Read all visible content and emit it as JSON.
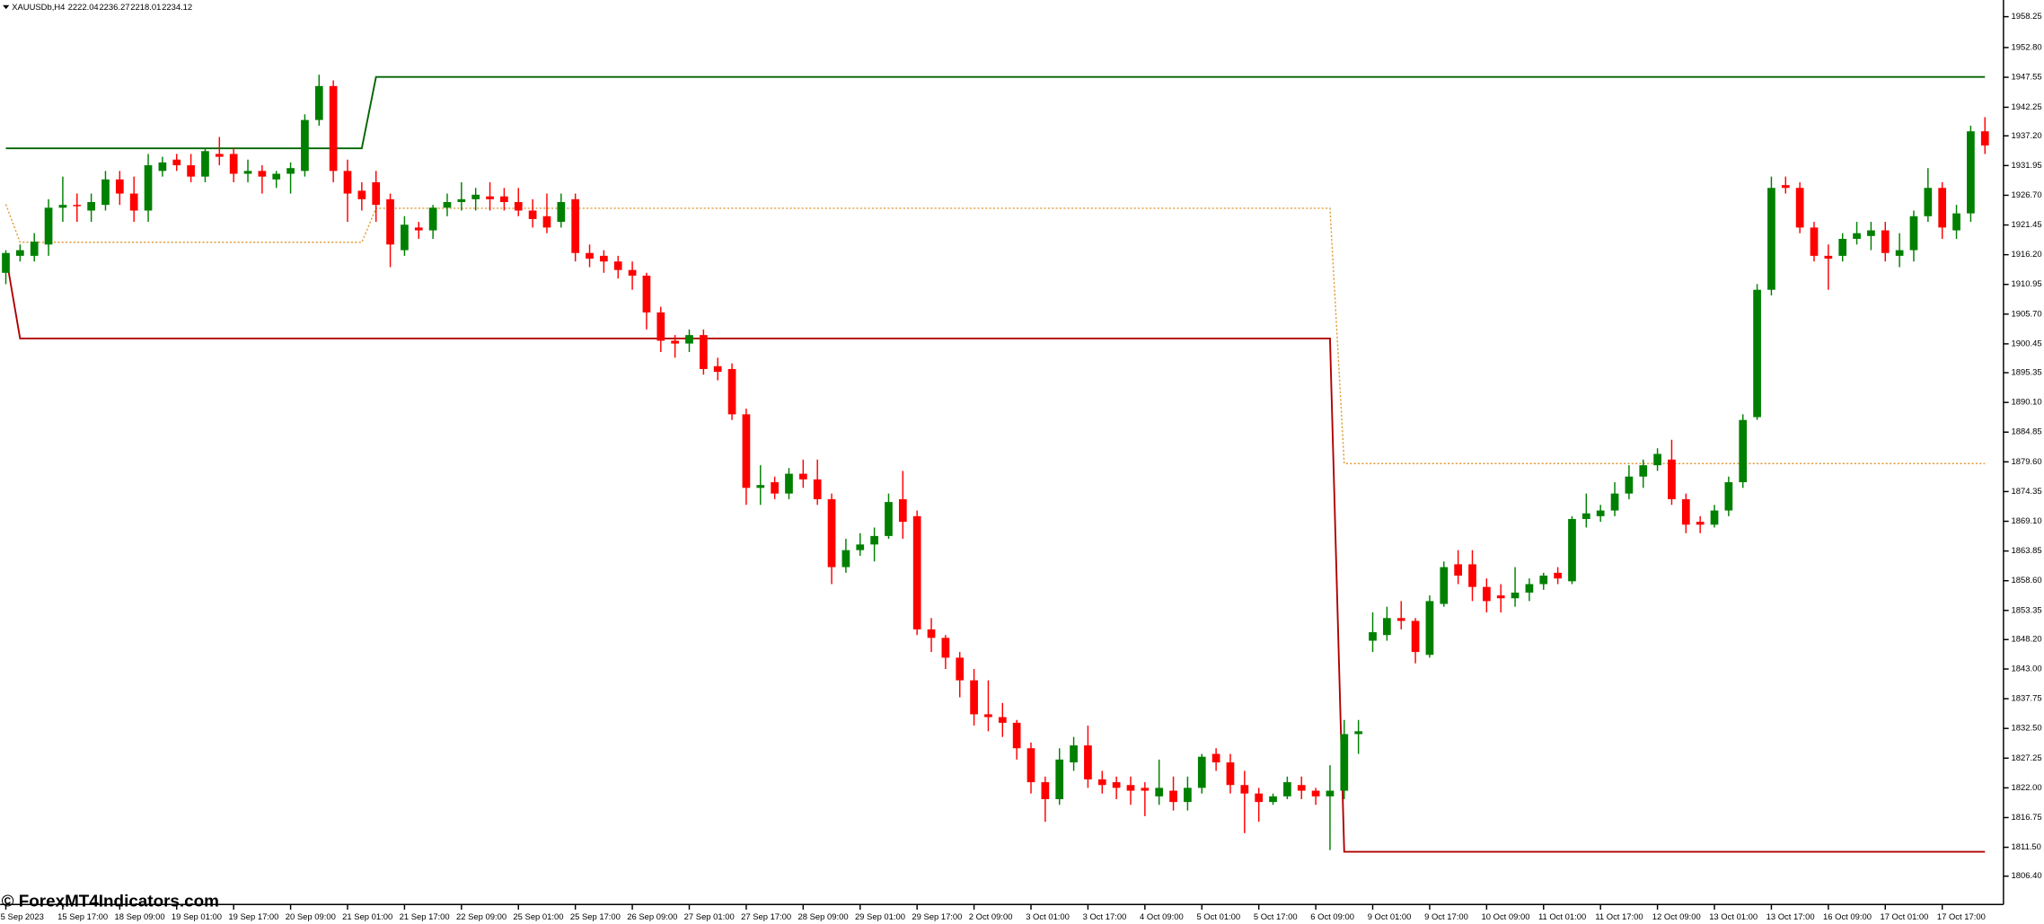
{
  "chart_data": {
    "type": "candlestick",
    "title": "XAUUSDb,H4",
    "header_values": [
      2222.04,
      2236.27,
      2218.01,
      2234.12
    ],
    "watermark": "© ForexMT4Indicators.com",
    "up_color": "#008000",
    "down_color": "#ff0000",
    "open": [
      1913,
      1916,
      1916,
      1918,
      1924.5,
      1925,
      1924,
      1925,
      1929.5,
      1927,
      1924,
      1931,
      1933,
      1932,
      1930,
      1934,
      1934,
      1930.5,
      1931,
      1929.5,
      1930.5,
      1931,
      1940,
      1946,
      1931,
      1927.5,
      1929,
      1926,
      1917,
      1921,
      1920.5,
      1924.5,
      1925.5,
      1926,
      1926.5,
      1926.5,
      1925.5,
      1924,
      1923,
      1922,
      1926,
      1916.5,
      1916,
      1915,
      1913.5,
      1912.5,
      1906,
      1901,
      1900.5,
      1902,
      1896.5,
      1896,
      1888,
      1875,
      1876,
      1874,
      1877.5,
      1876.5,
      1873,
      1861,
      1864,
      1865,
      1866.5,
      1873,
      1870,
      1850,
      1848.5,
      1845,
      1841,
      1835,
      1834.5,
      1833.5,
      1829,
      1823,
      1820,
      1826.5,
      1829.5,
      1823.5,
      1823,
      1822.5,
      1822,
      1820.5,
      1821.5,
      1819.5,
      1822,
      1828,
      1826.5,
      1822.5,
      1821,
      1819.5,
      1820.5,
      1822.5,
      1821.5,
      1820.5,
      1821.5,
      1831.5,
      1848,
      1849,
      1852,
      1851.5,
      1845.5,
      1854.5,
      1861.5,
      1861.5,
      1857.5,
      1856,
      1855.5,
      1856.5,
      1858,
      1860,
      1858.5,
      1869.5,
      1870,
      1871,
      1874,
      1877,
      1879,
      1880,
      1873,
      1869,
      1868.5,
      1871,
      1876,
      1887.5,
      1910,
      1928.5,
      1928,
      1921,
      1916,
      1916,
      1919,
      1919.5,
      1920.5,
      1916,
      1917,
      1923,
      1928,
      1920.5,
      1923.5,
      1938
    ],
    "high": [
      1917,
      1918,
      1920,
      1926,
      1930,
      1927,
      1927,
      1931,
      1931,
      1930,
      1934,
      1933.5,
      1934,
      1934,
      1935,
      1937,
      1935,
      1933,
      1932,
      1931,
      1932.5,
      1941,
      1948,
      1947,
      1933,
      1929,
      1931,
      1927,
      1923,
      1922,
      1925,
      1927,
      1929,
      1928,
      1929,
      1928,
      1928,
      1926,
      1927,
      1927,
      1927,
      1918,
      1917,
      1916,
      1915,
      1913,
      1907,
      1902,
      1903,
      1903,
      1898,
      1897,
      1889,
      1879,
      1877,
      1878.5,
      1880,
      1880,
      1874,
      1866,
      1867,
      1868,
      1874,
      1878,
      1871,
      1852,
      1849,
      1846,
      1843,
      1841,
      1837,
      1834,
      1830,
      1824,
      1829,
      1831,
      1833,
      1825,
      1824,
      1824,
      1823,
      1827,
      1824,
      1824,
      1828,
      1829,
      1828,
      1825,
      1822,
      1821,
      1824,
      1824,
      1822,
      1826,
      1834,
      1834,
      1853,
      1854,
      1855,
      1852,
      1856,
      1862,
      1864,
      1864,
      1859,
      1858,
      1861,
      1859,
      1860,
      1861,
      1870,
      1874,
      1872,
      1876,
      1879,
      1880,
      1882,
      1883.5,
      1874,
      1870,
      1872,
      1877,
      1888,
      1911,
      1930,
      1930,
      1929,
      1922,
      1918,
      1920,
      1922,
      1922,
      1922,
      1920,
      1924,
      1931.5,
      1929,
      1925,
      1939,
      1940.5
    ],
    "low": [
      1911,
      1915,
      1915,
      1916,
      1922,
      1922,
      1922,
      1924,
      1925,
      1922,
      1922,
      1930,
      1931,
      1929,
      1929,
      1932,
      1929,
      1929,
      1927,
      1928,
      1927,
      1930,
      1939,
      1929,
      1922,
      1924,
      1922,
      1914,
      1916,
      1919,
      1919,
      1923,
      1924,
      1924,
      1924,
      1924,
      1923,
      1921,
      1920,
      1921,
      1915,
      1914,
      1913,
      1912,
      1910,
      1903,
      1899,
      1898,
      1899,
      1895,
      1894,
      1887,
      1872,
      1872,
      1873,
      1873,
      1875,
      1872,
      1858,
      1860,
      1863,
      1862,
      1866,
      1866,
      1849,
      1846,
      1843,
      1838,
      1833,
      1832,
      1831,
      1827,
      1821,
      1816,
      1819,
      1825,
      1822,
      1821,
      1820,
      1819,
      1817,
      1819,
      1818,
      1818,
      1821,
      1825,
      1821,
      1814,
      1816,
      1819,
      1820,
      1820,
      1819,
      1811,
      1820,
      1828,
      1846,
      1848,
      1850,
      1844,
      1845,
      1854,
      1858,
      1855,
      1853,
      1853,
      1854,
      1855,
      1857,
      1858,
      1858,
      1868,
      1869,
      1870,
      1873,
      1875,
      1878,
      1872,
      1867,
      1867,
      1868,
      1870,
      1875,
      1887,
      1909,
      1927,
      1920,
      1915,
      1910,
      1915,
      1918,
      1917,
      1915,
      1914,
      1915,
      1922,
      1919,
      1919,
      1922,
      1934
    ],
    "close": [
      1916.5,
      1917,
      1918.5,
      1924.5,
      1925,
      1924.8,
      1925.5,
      1929.5,
      1927,
      1924,
      1932,
      1932.5,
      1932,
      1930,
      1934.5,
      1933.5,
      1930.5,
      1931,
      1930,
      1930.5,
      1931.5,
      1940,
      1946,
      1931,
      1927,
      1926,
      1925,
      1918,
      1921.5,
      1920.5,
      1924.5,
      1925.5,
      1926,
      1926.8,
      1926,
      1925.5,
      1924,
      1922.5,
      1921,
      1925.5,
      1916.5,
      1915.5,
      1915,
      1913.5,
      1912.5,
      1906,
      1901,
      1900.5,
      1902,
      1896,
      1895.5,
      1888,
      1875,
      1875.5,
      1874,
      1877.5,
      1876.5,
      1873,
      1861,
      1864,
      1865,
      1866.5,
      1872.5,
      1869,
      1850,
      1848.5,
      1845,
      1841,
      1835,
      1834.5,
      1833.5,
      1829,
      1823,
      1820,
      1827,
      1829.5,
      1823.5,
      1822.5,
      1822,
      1821.5,
      1821.5,
      1822,
      1819.5,
      1822,
      1827.5,
      1826.5,
      1822.5,
      1821,
      1819.5,
      1820.5,
      1823,
      1821.5,
      1820.5,
      1821.5,
      1831.5,
      1832,
      1849.5,
      1852,
      1851.5,
      1846,
      1855,
      1861,
      1859.5,
      1857.5,
      1855,
      1855.5,
      1856.5,
      1858,
      1859.5,
      1859,
      1869.5,
      1870.5,
      1871,
      1874,
      1877,
      1879,
      1881,
      1873,
      1868.5,
      1868.5,
      1871,
      1876,
      1887,
      1910,
      1928,
      1928,
      1921,
      1916,
      1915.5,
      1919,
      1920,
      1920.5,
      1916.5,
      1917,
      1923,
      1928,
      1921,
      1923.5,
      1938,
      1935.5
    ],
    "series": [
      {
        "color": "#006400",
        "style": "solid",
        "x": [
          0,
          25,
          26,
          139
        ],
        "values": [
          1935,
          1935,
          1947.6,
          1947.6
        ]
      },
      {
        "color": "#b00000",
        "style": "solid",
        "x": [
          0,
          1,
          93,
          94,
          139
        ],
        "values": [
          1916.1,
          1901.4,
          1901.4,
          1810.7,
          1810.7
        ]
      },
      {
        "color": "#e0a040",
        "style": "dotted",
        "x": [
          0,
          1,
          25,
          26,
          93,
          94,
          139
        ],
        "values": [
          1925.1,
          1918.4,
          1918.4,
          1924.4,
          1924.4,
          1879.3,
          1879.3
        ]
      }
    ],
    "xlim": [
      -0.4,
      140.3
    ],
    "ylim": [
      1801.4,
      1961.2
    ],
    "yticks": [
      1958.25,
      {
        "value": 1952.8,
        "label": "1952.80"
      },
      1947.55,
      1942.25,
      {
        "value": 1937.2,
        "label": "1937.20"
      },
      1931.95,
      {
        "value": 1926.7,
        "label": "1926.70"
      },
      1921.45,
      {
        "value": 1916.2,
        "label": "1916.20"
      },
      1910.95,
      {
        "value": 1905.7,
        "label": "1905.70"
      },
      1900.45,
      1895.35,
      {
        "value": 1890.1,
        "label": "1890.10"
      },
      1884.85,
      {
        "value": 1879.6,
        "label": "1879.60"
      },
      1874.35,
      {
        "value": 1869.1,
        "label": "1869.10"
      },
      1863.85,
      {
        "value": 1858.6,
        "label": "1858.60"
      },
      1853.35,
      {
        "value": 1848.2,
        "label": "1848.20"
      },
      {
        "value": 1843,
        "label": "1843.00"
      },
      1837.75,
      {
        "value": 1832.5,
        "label": "1832.50"
      },
      1827.25,
      {
        "value": 1822,
        "label": "1822.00"
      },
      1816.75,
      {
        "value": 1811.5,
        "label": "1811.50"
      },
      {
        "value": 1806.4,
        "label": "1806.40"
      }
    ],
    "xticks": [
      {
        "value": 0,
        "label": "5 Sep 2023"
      },
      {
        "value": 4,
        "label": "15 Sep 17:00"
      },
      {
        "value": 8,
        "label": "18 Sep 09:00"
      },
      {
        "value": 12,
        "label": "19 Sep 01:00"
      },
      {
        "value": 16,
        "label": "19 Sep 17:00"
      },
      {
        "value": 20,
        "label": "20 Sep 09:00"
      },
      {
        "value": 24,
        "label": "21 Sep 01:00"
      },
      {
        "value": 28,
        "label": "21 Sep 17:00"
      },
      {
        "value": 32,
        "label": "22 Sep 09:00"
      },
      {
        "value": 36,
        "label": "25 Sep 01:00"
      },
      {
        "value": 40,
        "label": "25 Sep 17:00"
      },
      {
        "value": 44,
        "label": "26 Sep 09:00"
      },
      {
        "value": 48,
        "label": "27 Sep 01:00"
      },
      {
        "value": 52,
        "label": "27 Sep 17:00"
      },
      {
        "value": 56,
        "label": "28 Sep 09:00"
      },
      {
        "value": 60,
        "label": "29 Sep 01:00"
      },
      {
        "value": 64,
        "label": "29 Sep 17:00"
      },
      {
        "value": 68,
        "label": "2 Oct 09:00"
      },
      {
        "value": 72,
        "label": "3 Oct 01:00"
      },
      {
        "value": 76,
        "label": "3 Oct 17:00"
      },
      {
        "value": 80,
        "label": "4 Oct 09:00"
      },
      {
        "value": 84,
        "label": "5 Oct 01:00"
      },
      {
        "value": 88,
        "label": "5 Oct 17:00"
      },
      {
        "value": 92,
        "label": "6 Oct 09:00"
      },
      {
        "value": 96,
        "label": "9 Oct 01:00"
      },
      {
        "value": 100,
        "label": "9 Oct 17:00"
      },
      {
        "value": 104,
        "label": "10 Oct 09:00"
      },
      {
        "value": 108,
        "label": "11 Oct 01:00"
      },
      {
        "value": 112,
        "label": "11 Oct 17:00"
      },
      {
        "value": 116,
        "label": "12 Oct 09:00"
      },
      {
        "value": 120,
        "label": "13 Oct 01:00"
      },
      {
        "value": 124,
        "label": "13 Oct 17:00"
      },
      {
        "value": 128,
        "label": "16 Oct 09:00"
      },
      {
        "value": 132,
        "label": "17 Oct 01:00"
      },
      {
        "value": 136,
        "label": "17 Oct 17:00"
      }
    ]
  }
}
